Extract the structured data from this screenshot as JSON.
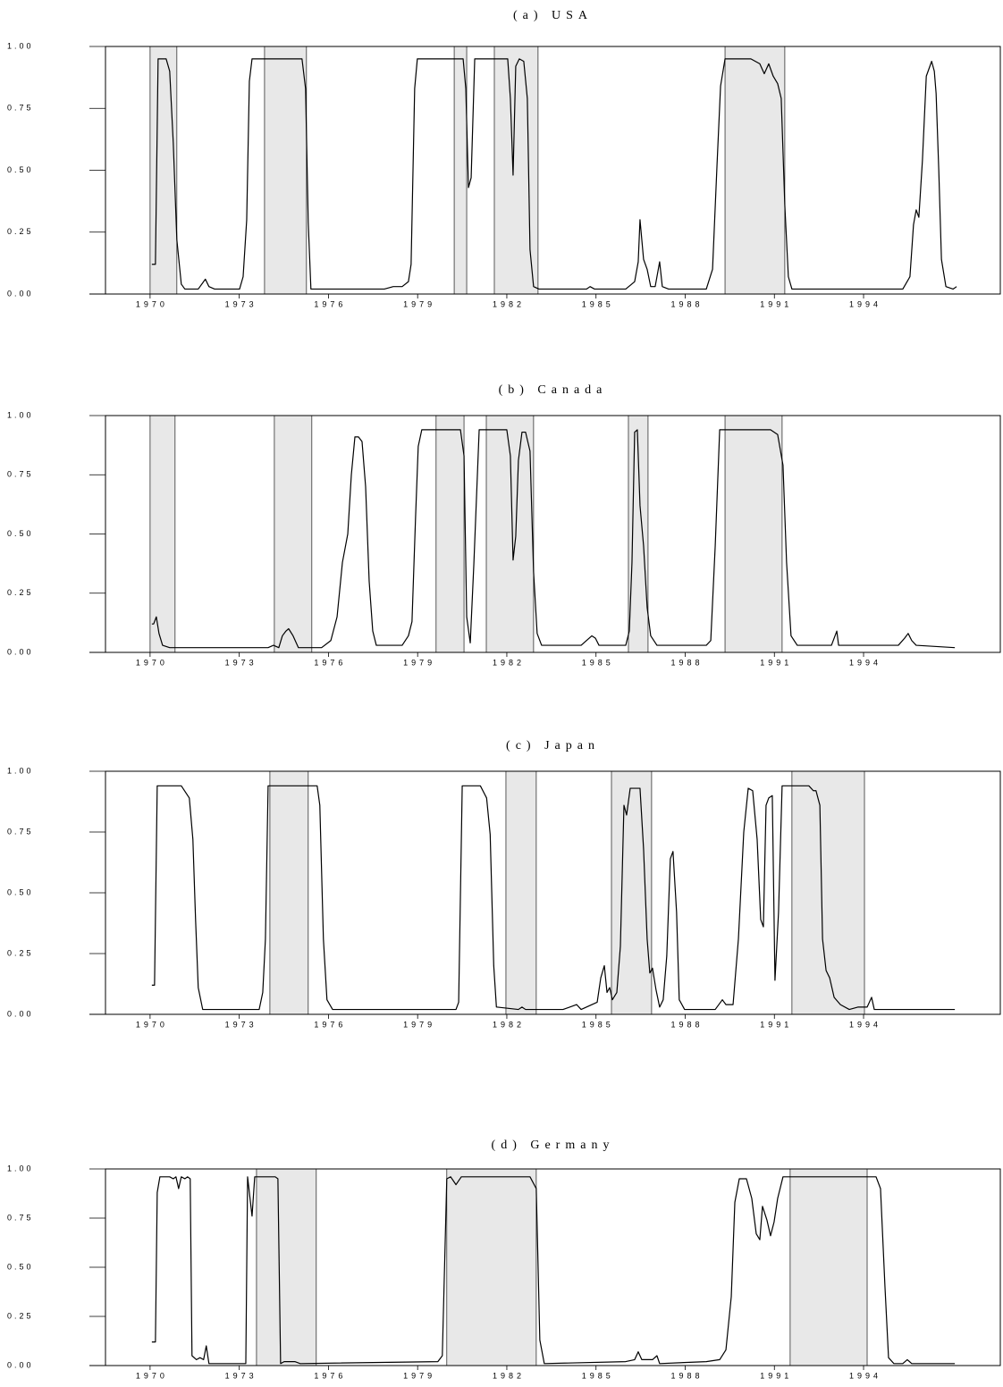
{
  "chart_data": [
    {
      "type": "line",
      "title": "(a) USA",
      "color": "#000000",
      "shade_color": "#e8e8e8",
      "xlim": [
        1968.5,
        1998.6
      ],
      "ylim": [
        0,
        1
      ],
      "xticks": [
        1970,
        1973,
        1976,
        1979,
        1982,
        1985,
        1988,
        1991,
        1994
      ],
      "yticks": [
        {
          "value": 0,
          "label": "0.00"
        },
        0.25,
        {
          "value": 0.5,
          "label": "0.50"
        },
        0.75,
        {
          "value": 1,
          "label": "1.00"
        }
      ],
      "shaded": [
        [
          1970.0,
          1970.9
        ],
        [
          1973.85,
          1975.26
        ],
        [
          1980.23,
          1980.65
        ],
        [
          1981.58,
          1983.05
        ],
        [
          1989.34,
          1991.35
        ]
      ],
      "x": [
        1970.06,
        1970.18,
        1970.27,
        1970.54,
        1970.66,
        1970.78,
        1970.9,
        1971.05,
        1971.17,
        1971.62,
        1971.86,
        1971.98,
        1972.17,
        1973.01,
        1973.13,
        1973.25,
        1973.34,
        1973.43,
        1975.11,
        1975.23,
        1975.32,
        1975.41,
        1977.88,
        1978.18,
        1978.48,
        1978.69,
        1978.78,
        1978.9,
        1978.99,
        1980.53,
        1980.62,
        1980.71,
        1980.8,
        1980.92,
        1982.03,
        1982.12,
        1982.21,
        1982.3,
        1982.42,
        1982.57,
        1982.69,
        1982.78,
        1982.9,
        1983.08,
        1984.68,
        1984.8,
        1984.95,
        1986.0,
        1986.3,
        1986.42,
        1986.48,
        1986.6,
        1986.72,
        1986.84,
        1986.99,
        1987.14,
        1987.23,
        1987.44,
        1988.71,
        1988.92,
        1989.07,
        1989.19,
        1989.34,
        1990.21,
        1990.51,
        1990.66,
        1990.81,
        1990.96,
        1991.11,
        1991.23,
        1991.35,
        1991.47,
        1991.59,
        1995.32,
        1995.56,
        1995.68,
        1995.77,
        1995.86,
        1995.98,
        1996.11,
        1996.29,
        1996.38,
        1996.44,
        1996.53,
        1996.62,
        1996.77,
        1997.01,
        1997.13
      ],
      "values": [
        0.12,
        0.12,
        0.95,
        0.95,
        0.9,
        0.61,
        0.22,
        0.04,
        0.02,
        0.02,
        0.06,
        0.03,
        0.02,
        0.02,
        0.07,
        0.3,
        0.86,
        0.95,
        0.95,
        0.83,
        0.29,
        0.02,
        0.02,
        0.03,
        0.03,
        0.05,
        0.12,
        0.83,
        0.95,
        0.95,
        0.83,
        0.43,
        0.47,
        0.95,
        0.95,
        0.79,
        0.48,
        0.92,
        0.95,
        0.94,
        0.79,
        0.18,
        0.03,
        0.02,
        0.02,
        0.03,
        0.02,
        0.02,
        0.05,
        0.13,
        0.3,
        0.14,
        0.1,
        0.03,
        0.03,
        0.13,
        0.03,
        0.02,
        0.02,
        0.1,
        0.52,
        0.84,
        0.95,
        0.95,
        0.93,
        0.89,
        0.93,
        0.88,
        0.85,
        0.79,
        0.36,
        0.07,
        0.02,
        0.02,
        0.07,
        0.28,
        0.34,
        0.31,
        0.54,
        0.88,
        0.94,
        0.9,
        0.81,
        0.5,
        0.14,
        0.03,
        0.02,
        0.03
      ]
    },
    {
      "type": "line",
      "title": "(b) Canada",
      "color": "#000000",
      "shade_color": "#e8e8e8",
      "xlim": [
        1968.5,
        1998.6
      ],
      "ylim": [
        0,
        1
      ],
      "xticks": [
        1970,
        1973,
        1976,
        1979,
        1982,
        1985,
        1988,
        1991,
        1994
      ],
      "yticks": [
        {
          "value": 0,
          "label": "0.00"
        },
        0.25,
        {
          "value": 0.5,
          "label": "0.50"
        },
        0.75,
        {
          "value": 1,
          "label": "1.00"
        }
      ],
      "shaded": [
        [
          1970.0,
          1970.84
        ],
        [
          1974.18,
          1975.44
        ],
        [
          1979.62,
          1980.56
        ],
        [
          1981.31,
          1982.9
        ],
        [
          1986.09,
          1986.75
        ],
        [
          1989.34,
          1991.26
        ]
      ],
      "x": [
        1970.06,
        1970.12,
        1970.21,
        1970.3,
        1970.42,
        1970.66,
        1973.97,
        1974.15,
        1974.33,
        1974.45,
        1974.57,
        1974.66,
        1974.81,
        1974.99,
        1975.77,
        1976.08,
        1976.29,
        1976.47,
        1976.65,
        1976.77,
        1976.89,
        1977.01,
        1977.13,
        1977.25,
        1977.37,
        1977.49,
        1977.61,
        1978.48,
        1978.69,
        1978.81,
        1978.93,
        1979.02,
        1979.14,
        1980.44,
        1980.56,
        1980.65,
        1980.77,
        1980.89,
        1981.07,
        1982.0,
        1982.12,
        1982.21,
        1982.3,
        1982.39,
        1982.51,
        1982.63,
        1982.78,
        1982.9,
        1983.02,
        1983.17,
        1984.5,
        1984.86,
        1984.98,
        1985.1,
        1986.0,
        1986.12,
        1986.21,
        1986.3,
        1986.39,
        1986.48,
        1986.6,
        1986.72,
        1986.84,
        1987.05,
        1988.71,
        1988.86,
        1989.01,
        1989.16,
        1990.87,
        1991.11,
        1991.29,
        1991.41,
        1991.56,
        1991.77,
        1992.92,
        1993.1,
        1993.16,
        1995.17,
        1995.38,
        1995.5,
        1995.62,
        1995.77,
        1997.07
      ],
      "values": [
        0.12,
        0.12,
        0.15,
        0.08,
        0.03,
        0.02,
        0.02,
        0.03,
        0.02,
        0.07,
        0.09,
        0.1,
        0.07,
        0.02,
        0.02,
        0.05,
        0.15,
        0.38,
        0.5,
        0.75,
        0.91,
        0.91,
        0.89,
        0.7,
        0.3,
        0.09,
        0.03,
        0.03,
        0.07,
        0.13,
        0.57,
        0.87,
        0.94,
        0.94,
        0.83,
        0.15,
        0.04,
        0.37,
        0.94,
        0.94,
        0.83,
        0.39,
        0.49,
        0.81,
        0.93,
        0.93,
        0.85,
        0.34,
        0.08,
        0.03,
        0.03,
        0.07,
        0.06,
        0.03,
        0.03,
        0.09,
        0.38,
        0.93,
        0.94,
        0.62,
        0.45,
        0.19,
        0.07,
        0.03,
        0.03,
        0.05,
        0.45,
        0.94,
        0.94,
        0.92,
        0.79,
        0.38,
        0.07,
        0.03,
        0.03,
        0.09,
        0.03,
        0.03,
        0.06,
        0.08,
        0.05,
        0.03,
        0.02
      ]
    },
    {
      "type": "line",
      "title": "(c) Japan",
      "color": "#000000",
      "shade_color": "#e8e8e8",
      "xlim": [
        1968.5,
        1998.6
      ],
      "ylim": [
        0,
        1
      ],
      "xticks": [
        1970,
        1973,
        1976,
        1979,
        1982,
        1985,
        1988,
        1991,
        1994
      ],
      "yticks": [
        {
          "value": 0,
          "label": "0.00"
        },
        0.25,
        {
          "value": 0.5,
          "label": "0.50"
        },
        0.75,
        {
          "value": 1,
          "label": "1.00"
        }
      ],
      "shaded": [
        [
          1974.03,
          1975.32
        ],
        [
          1981.97,
          1982.99
        ],
        [
          1985.52,
          1986.87
        ],
        [
          1991.59,
          1994.03
        ]
      ],
      "x": [
        1970.06,
        1970.15,
        1970.24,
        1971.05,
        1971.32,
        1971.44,
        1971.53,
        1971.62,
        1971.77,
        1973.67,
        1973.79,
        1973.88,
        1973.97,
        1975.62,
        1975.71,
        1975.83,
        1975.95,
        1976.14,
        1980.29,
        1980.38,
        1980.5,
        1981.11,
        1981.32,
        1981.44,
        1981.56,
        1981.65,
        1982.39,
        1982.51,
        1982.63,
        1983.89,
        1984.35,
        1984.5,
        1985.04,
        1985.16,
        1985.28,
        1985.37,
        1985.46,
        1985.55,
        1985.7,
        1985.82,
        1985.94,
        1986.03,
        1986.15,
        1986.48,
        1986.6,
        1986.72,
        1986.81,
        1986.9,
        1987.02,
        1987.14,
        1987.26,
        1987.38,
        1987.5,
        1987.59,
        1987.71,
        1987.8,
        1987.98,
        1989.01,
        1989.25,
        1989.37,
        1989.61,
        1989.79,
        1989.97,
        1990.12,
        1990.27,
        1990.42,
        1990.54,
        1990.63,
        1990.72,
        1990.81,
        1990.93,
        1991.02,
        1991.14,
        1991.26,
        1992.16,
        1992.31,
        1992.4,
        1992.53,
        1992.62,
        1992.74,
        1992.86,
        1993.01,
        1993.22,
        1993.52,
        1993.82,
        1994.12,
        1994.27,
        1994.36,
        1997.07
      ],
      "values": [
        0.12,
        0.12,
        0.94,
        0.94,
        0.89,
        0.72,
        0.39,
        0.11,
        0.02,
        0.02,
        0.09,
        0.31,
        0.94,
        0.94,
        0.86,
        0.31,
        0.06,
        0.02,
        0.02,
        0.05,
        0.94,
        0.94,
        0.89,
        0.74,
        0.2,
        0.03,
        0.02,
        0.03,
        0.02,
        0.02,
        0.04,
        0.02,
        0.05,
        0.15,
        0.2,
        0.09,
        0.11,
        0.06,
        0.09,
        0.28,
        0.86,
        0.82,
        0.93,
        0.93,
        0.68,
        0.31,
        0.17,
        0.19,
        0.1,
        0.03,
        0.06,
        0.24,
        0.64,
        0.67,
        0.42,
        0.06,
        0.02,
        0.02,
        0.06,
        0.04,
        0.04,
        0.31,
        0.75,
        0.93,
        0.92,
        0.72,
        0.39,
        0.36,
        0.86,
        0.89,
        0.9,
        0.14,
        0.42,
        0.94,
        0.94,
        0.92,
        0.92,
        0.86,
        0.31,
        0.18,
        0.15,
        0.07,
        0.04,
        0.02,
        0.03,
        0.03,
        0.07,
        0.02,
        0.02
      ]
    },
    {
      "type": "line",
      "title": "(d) Germany",
      "color": "#000000",
      "shade_color": "#e8e8e8",
      "xlim": [
        1968.5,
        1998.6
      ],
      "ylim": [
        0,
        1
      ],
      "xticks": [
        1970,
        1973,
        1976,
        1979,
        1982,
        1985,
        1988,
        1991,
        1994
      ],
      "yticks": [
        {
          "value": 0,
          "label": "0.00"
        },
        0.25,
        {
          "value": 0.5,
          "label": "0.50"
        },
        0.75,
        {
          "value": 1,
          "label": "1.00"
        }
      ],
      "shaded": [
        [
          1973.58,
          1975.59
        ],
        [
          1979.98,
          1982.99
        ],
        [
          1991.53,
          1994.12
        ]
      ],
      "x": [
        1970.06,
        1970.18,
        1970.24,
        1970.33,
        1970.66,
        1970.78,
        1970.87,
        1970.96,
        1971.05,
        1971.17,
        1971.26,
        1971.35,
        1971.41,
        1971.56,
        1971.68,
        1971.8,
        1971.89,
        1971.98,
        1973.07,
        1973.22,
        1973.28,
        1973.43,
        1973.52,
        1974.21,
        1974.3,
        1974.39,
        1974.51,
        1974.87,
        1975.05,
        1979.68,
        1979.83,
        1979.98,
        1980.11,
        1980.29,
        1980.47,
        1982.78,
        1982.99,
        1983.11,
        1983.26,
        1986.0,
        1986.3,
        1986.42,
        1986.54,
        1986.9,
        1987.05,
        1987.14,
        1988.71,
        1989.16,
        1989.37,
        1989.55,
        1989.67,
        1989.82,
        1990.06,
        1990.24,
        1990.39,
        1990.51,
        1990.6,
        1990.75,
        1990.87,
        1990.99,
        1991.11,
        1991.29,
        1994.42,
        1994.57,
        1994.72,
        1994.84,
        1995.02,
        1995.32,
        1995.47,
        1995.62,
        1997.07
      ],
      "values": [
        0.12,
        0.12,
        0.88,
        0.96,
        0.96,
        0.95,
        0.96,
        0.9,
        0.96,
        0.95,
        0.96,
        0.95,
        0.05,
        0.03,
        0.04,
        0.03,
        0.1,
        0.01,
        0.01,
        0.01,
        0.96,
        0.76,
        0.96,
        0.96,
        0.95,
        0.01,
        0.02,
        0.02,
        0.01,
        0.02,
        0.05,
        0.95,
        0.96,
        0.92,
        0.96,
        0.96,
        0.9,
        0.13,
        0.01,
        0.02,
        0.03,
        0.07,
        0.03,
        0.03,
        0.05,
        0.01,
        0.02,
        0.03,
        0.08,
        0.35,
        0.83,
        0.95,
        0.95,
        0.85,
        0.67,
        0.64,
        0.81,
        0.74,
        0.66,
        0.73,
        0.85,
        0.96,
        0.96,
        0.9,
        0.4,
        0.04,
        0.01,
        0.01,
        0.03,
        0.01,
        0.01
      ]
    }
  ]
}
